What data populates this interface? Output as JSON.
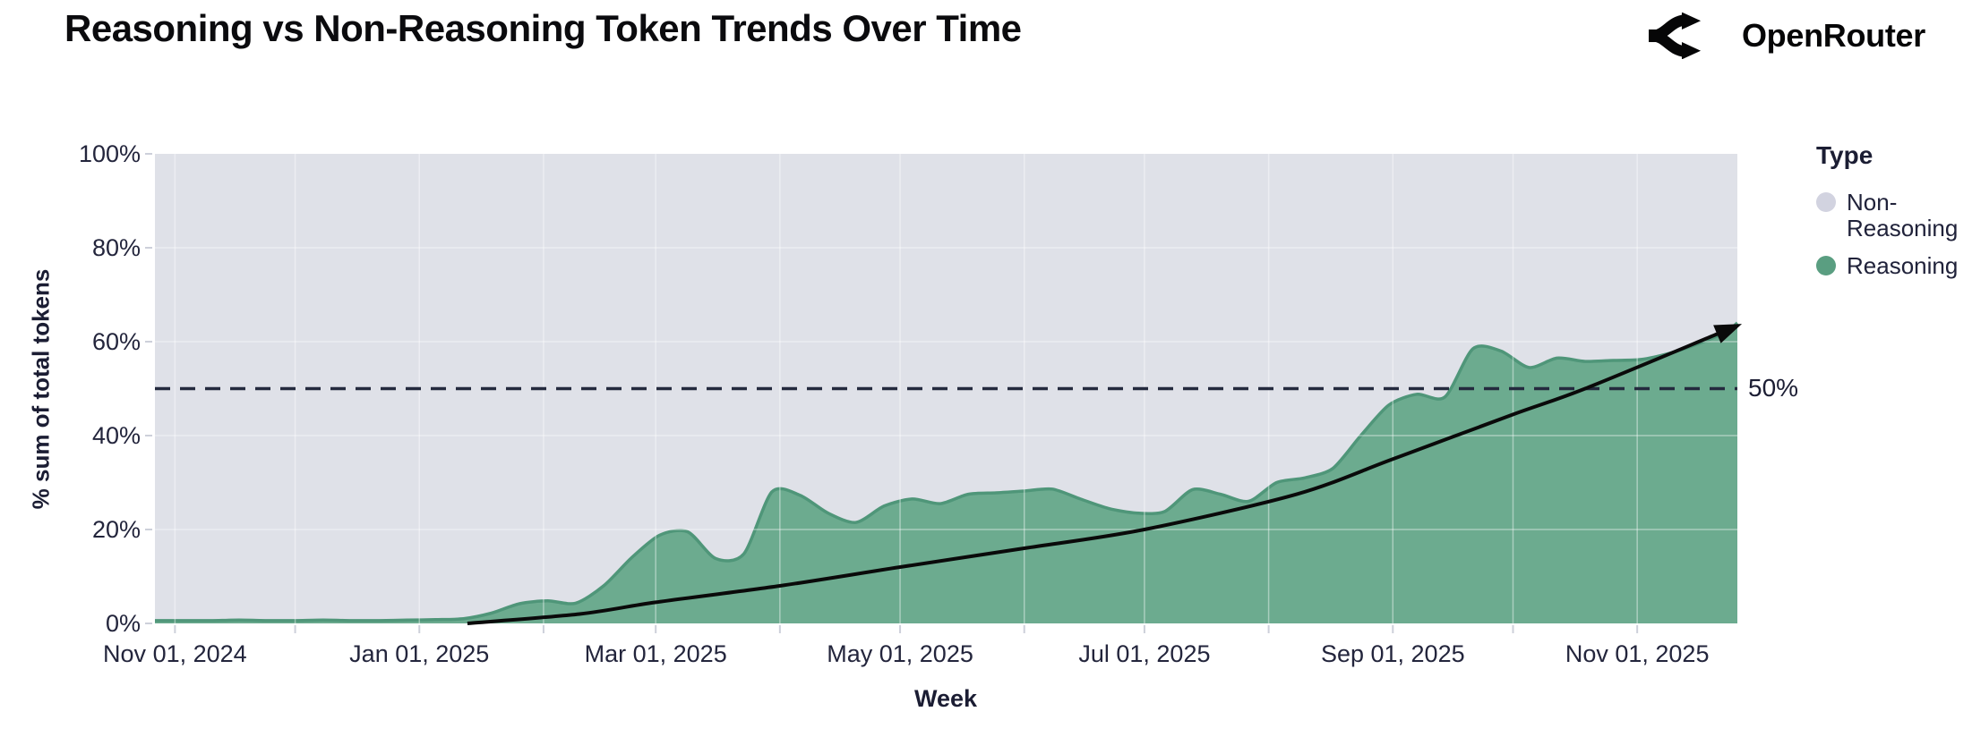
{
  "header": {
    "title": "Reasoning vs Non-Reasoning Token Trends Over Time",
    "brand": {
      "name": "OpenRouter",
      "logo_icon": "openrouter-fork-icon"
    }
  },
  "colors": {
    "reasoning_fill": "#6CAB8F",
    "reasoning_stroke": "#4F9679",
    "non_reasoning_fill": "#DFE1E8",
    "legend_non_reasoning_dot": "#D2D3E0",
    "grid_line": "rgba(255,255,255,0.42)",
    "tick_mark": "#CDD0DA",
    "dashed_line": "#242A3E",
    "trend_line": "#0A0A0A",
    "axis_text": "#23253C"
  },
  "chart_data": {
    "type": "area",
    "stacked_percent": true,
    "title": "Reasoning vs Non-Reasoning Token Trends Over Time",
    "xlabel": "Week",
    "ylabel": "% sum of total tokens",
    "ylim": [
      0,
      100
    ],
    "grid": true,
    "y_ticks": [
      {
        "value": 0,
        "label": "0%"
      },
      {
        "value": 20,
        "label": "20%"
      },
      {
        "value": 40,
        "label": "40%"
      },
      {
        "value": 60,
        "label": "60%"
      },
      {
        "value": 80,
        "label": "80%"
      },
      {
        "value": 100,
        "label": "100%"
      }
    ],
    "x_range": [
      "2024-10-27",
      "2025-11-26"
    ],
    "x_ticks": [
      {
        "date": "2024-11-01",
        "label": "Nov 01, 2024"
      },
      {
        "date": "2025-01-01",
        "label": "Jan 01, 2025"
      },
      {
        "date": "2025-03-01",
        "label": "Mar 01, 2025"
      },
      {
        "date": "2025-05-01",
        "label": "May 01, 2025"
      },
      {
        "date": "2025-07-01",
        "label": "Jul 01, 2025"
      },
      {
        "date": "2025-09-01",
        "label": "Sep 01, 2025"
      },
      {
        "date": "2025-11-01",
        "label": "Nov 01, 2025"
      }
    ],
    "legend": {
      "title": "Type",
      "position": "right",
      "items": [
        {
          "label": "Non-Reasoning",
          "color": "#D2D3E0"
        },
        {
          "label": "Reasoning",
          "color": "#5A9E81"
        }
      ]
    },
    "series": [
      {
        "name": "Reasoning",
        "unit": "% of total tokens",
        "points": [
          [
            "2024-10-27",
            0.6
          ],
          [
            "2024-11-03",
            0.6
          ],
          [
            "2024-11-10",
            0.6
          ],
          [
            "2024-11-17",
            0.7
          ],
          [
            "2024-11-24",
            0.6
          ],
          [
            "2024-12-01",
            0.6
          ],
          [
            "2024-12-08",
            0.7
          ],
          [
            "2024-12-15",
            0.6
          ],
          [
            "2024-12-22",
            0.6
          ],
          [
            "2024-12-29",
            0.7
          ],
          [
            "2025-01-05",
            0.8
          ],
          [
            "2025-01-12",
            1.0
          ],
          [
            "2025-01-19",
            2.2
          ],
          [
            "2025-01-26",
            4.2
          ],
          [
            "2025-02-02",
            4.8
          ],
          [
            "2025-02-09",
            4.3
          ],
          [
            "2025-02-16",
            8.0
          ],
          [
            "2025-02-23",
            14.0
          ],
          [
            "2025-03-02",
            18.8
          ],
          [
            "2025-03-09",
            19.5
          ],
          [
            "2025-03-16",
            13.8
          ],
          [
            "2025-03-23",
            14.8
          ],
          [
            "2025-03-30",
            28.0
          ],
          [
            "2025-04-06",
            27.3
          ],
          [
            "2025-04-13",
            23.5
          ],
          [
            "2025-04-20",
            21.5
          ],
          [
            "2025-04-27",
            25.0
          ],
          [
            "2025-05-04",
            26.5
          ],
          [
            "2025-05-11",
            25.5
          ],
          [
            "2025-05-18",
            27.5
          ],
          [
            "2025-05-25",
            27.8
          ],
          [
            "2025-06-01",
            28.2
          ],
          [
            "2025-06-08",
            28.6
          ],
          [
            "2025-06-15",
            26.5
          ],
          [
            "2025-06-22",
            24.5
          ],
          [
            "2025-06-29",
            23.5
          ],
          [
            "2025-07-06",
            23.8
          ],
          [
            "2025-07-13",
            28.5
          ],
          [
            "2025-07-20",
            27.5
          ],
          [
            "2025-07-27",
            26.0
          ],
          [
            "2025-08-03",
            30.0
          ],
          [
            "2025-08-10",
            31.0
          ],
          [
            "2025-08-17",
            33.0
          ],
          [
            "2025-08-24",
            40.0
          ],
          [
            "2025-08-31",
            46.5
          ],
          [
            "2025-09-07",
            48.8
          ],
          [
            "2025-09-14",
            48.2
          ],
          [
            "2025-09-21",
            58.5
          ],
          [
            "2025-09-28",
            58.0
          ],
          [
            "2025-10-05",
            54.5
          ],
          [
            "2025-10-12",
            56.5
          ],
          [
            "2025-10-19",
            55.8
          ],
          [
            "2025-10-26",
            56.0
          ],
          [
            "2025-11-02",
            56.2
          ],
          [
            "2025-11-09",
            57.5
          ],
          [
            "2025-11-16",
            59.5
          ],
          [
            "2025-11-23",
            62.0
          ],
          [
            "2025-11-26",
            64.0
          ]
        ]
      },
      {
        "name": "Non-Reasoning",
        "note": "fills remainder of stack up to 100%"
      }
    ],
    "annotations": {
      "dashed_line": {
        "value": 50,
        "label": "50%"
      },
      "trend_arrow": {
        "description": "exponential growth arrow",
        "points": [
          [
            "2025-01-13",
            0
          ],
          [
            "2025-02-10",
            2
          ],
          [
            "2025-03-01",
            4.5
          ],
          [
            "2025-04-01",
            8
          ],
          [
            "2025-05-01",
            12
          ],
          [
            "2025-06-01",
            16
          ],
          [
            "2025-07-01",
            20
          ],
          [
            "2025-08-08",
            27.5
          ],
          [
            "2025-09-01",
            35
          ],
          [
            "2025-10-01",
            44.5
          ],
          [
            "2025-10-19",
            50
          ],
          [
            "2025-11-22",
            62
          ]
        ]
      }
    }
  }
}
